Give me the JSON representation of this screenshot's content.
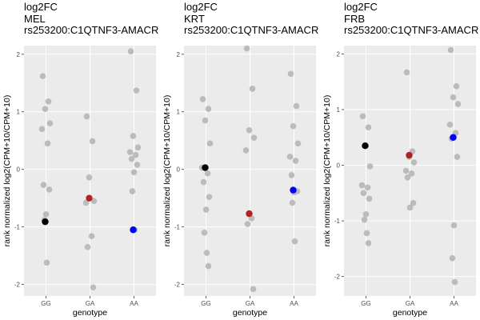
{
  "chart_data": [
    {
      "type": "scatter",
      "title_lines": [
        "log2FC",
        "MEL",
        "rs253200:C1QTNF3-AMACR"
      ],
      "xlabel": "genotype",
      "ylabel": "rank normalized log2(CPM+10/CPM+10)",
      "categories": [
        "GG",
        "GA",
        "AA"
      ],
      "ylim": [
        -2.2,
        2.15
      ],
      "yticks": [
        -2,
        -1,
        0,
        1,
        2
      ],
      "ytick_labels": [
        "-2",
        "-1",
        "0",
        "1",
        "2"
      ],
      "grid": true,
      "colors": {
        "panel_bg": "#ebebeb",
        "grid": "#ffffff",
        "points": "#b3b3b3",
        "GG": "#000000",
        "GA": "#b22222",
        "AA": "#0000ff"
      },
      "points": [
        {
          "genotype": "GG",
          "values": [
            1.62,
            1.18,
            1.05,
            0.8,
            0.7,
            0.45,
            -0.27,
            -0.35,
            -0.78,
            -0.88,
            -1.62
          ]
        },
        {
          "genotype": "GA",
          "values": [
            0.92,
            0.49,
            -0.14,
            -0.55,
            -0.58,
            -1.16,
            -1.35,
            -2.05
          ]
        },
        {
          "genotype": "AA",
          "values": [
            2.05,
            1.37,
            0.58,
            0.38,
            0.3,
            0.25,
            0.18,
            0.08,
            -0.05,
            -0.38,
            -1.05
          ]
        }
      ],
      "highlight": [
        {
          "genotype": "GG",
          "value": -0.91
        },
        {
          "genotype": "GA",
          "value": -0.5
        },
        {
          "genotype": "AA",
          "value": -1.05
        }
      ]
    },
    {
      "type": "scatter",
      "title_lines": [
        "log2FC",
        "KRT",
        "rs253200:C1QTNF3-AMACR"
      ],
      "xlabel": "genotype",
      "ylabel": "rank normalized log2(CPM+10/CPM+10)",
      "categories": [
        "GG",
        "GA",
        "AA"
      ],
      "ylim": [
        -2.2,
        2.15
      ],
      "yticks": [
        -2,
        -1,
        0,
        1,
        2
      ],
      "ytick_labels": [
        "-2",
        "-1",
        "0",
        "1",
        "2"
      ],
      "grid": true,
      "colors": {
        "panel_bg": "#ebebeb",
        "grid": "#ffffff",
        "points": "#b3b3b3",
        "GG": "#000000",
        "GA": "#b22222",
        "AA": "#0000ff"
      },
      "points": [
        {
          "genotype": "GG",
          "values": [
            1.22,
            1.05,
            0.85,
            0.45,
            0.03,
            -0.07,
            -0.22,
            -0.48,
            -0.7,
            -1.1,
            -1.45,
            -1.68
          ]
        },
        {
          "genotype": "GA",
          "values": [
            2.1,
            1.4,
            0.68,
            0.55,
            0.33,
            -0.85,
            -0.95,
            -2.08
          ]
        },
        {
          "genotype": "AA",
          "values": [
            1.66,
            1.1,
            0.75,
            0.45,
            0.22,
            0.15,
            -0.1,
            -0.38,
            -0.4,
            -0.58,
            -1.25
          ]
        }
      ],
      "highlight": [
        {
          "genotype": "GG",
          "value": 0.03
        },
        {
          "genotype": "GA",
          "value": -0.77
        },
        {
          "genotype": "AA",
          "value": -0.36
        }
      ]
    },
    {
      "type": "scatter",
      "title_lines": [
        "log2FC",
        "FRB",
        "rs253200:C1QTNF3-AMACR"
      ],
      "xlabel": "genotype",
      "ylabel": "rank normalized log2(CPM+10/CPM+10)",
      "categories": [
        "GG",
        "GA",
        "AA"
      ],
      "ylim": [
        -2.35,
        2.15
      ],
      "yticks": [
        -2,
        -1,
        0,
        1,
        2
      ],
      "ytick_labels": [
        "-2",
        "-1",
        "0",
        "1",
        "2"
      ],
      "grid": true,
      "colors": {
        "panel_bg": "#ebebeb",
        "grid": "#ffffff",
        "points": "#b3b3b3",
        "GG": "#000000",
        "GA": "#b22222",
        "AA": "#0000ff"
      },
      "points": [
        {
          "genotype": "GG",
          "values": [
            0.88,
            0.68,
            0.35,
            -0.02,
            -0.36,
            -0.4,
            -0.5,
            -0.6,
            -0.88,
            -0.98,
            -1.22,
            -1.4
          ]
        },
        {
          "genotype": "GA",
          "values": [
            1.67,
            0.25,
            0.15,
            0.05,
            -0.1,
            -0.15,
            -0.22,
            -0.68,
            -0.76
          ]
        },
        {
          "genotype": "AA",
          "values": [
            2.07,
            1.42,
            1.22,
            1.1,
            0.73,
            0.58,
            0.48,
            0.15,
            -1.08,
            -1.67,
            -2.1
          ]
        }
      ],
      "highlight": [
        {
          "genotype": "GG",
          "value": 0.35
        },
        {
          "genotype": "GA",
          "value": 0.18
        },
        {
          "genotype": "AA",
          "value": 0.5
        }
      ]
    }
  ]
}
